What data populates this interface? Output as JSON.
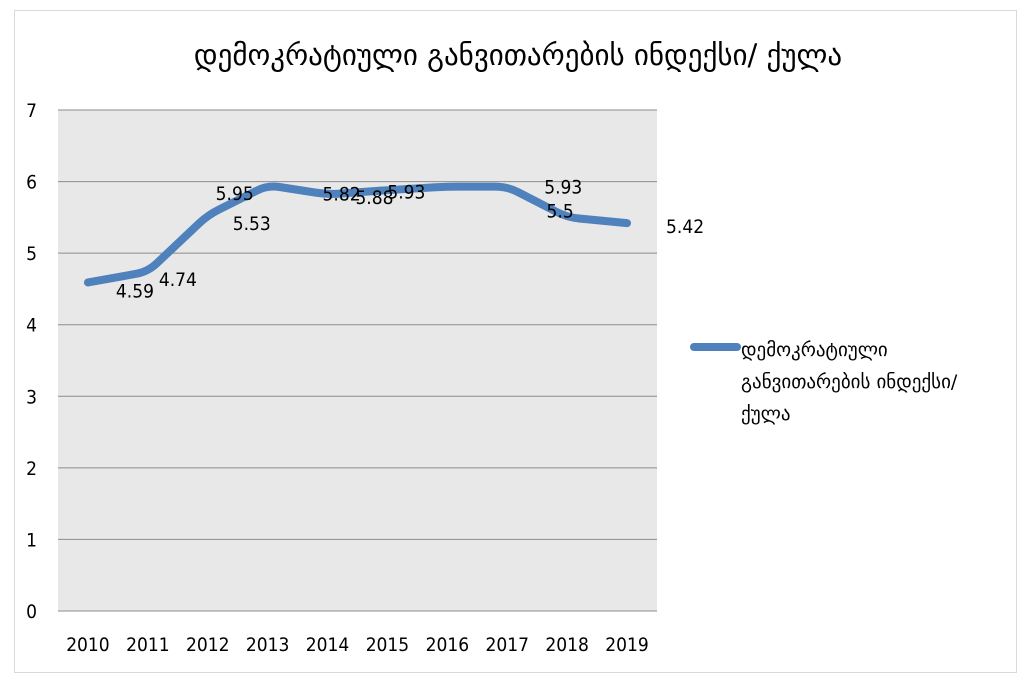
{
  "chart_data": {
    "type": "line",
    "title": "დემოკრატიული განვითარების ინდექსი/ ქულა",
    "categories": [
      "2010",
      "2011",
      "2012",
      "2013",
      "2014",
      "2015",
      "2016",
      "2017",
      "2018",
      "2019"
    ],
    "series": [
      {
        "name": "დემოკრატიული განვითარების ინდექსი/ ქულა",
        "values": [
          4.59,
          4.74,
          5.53,
          5.95,
          5.82,
          5.88,
          5.93,
          5.93,
          5.5,
          5.42
        ],
        "labels": [
          "4.59",
          "4.74",
          "5.53",
          "5.95",
          "5.82",
          "5.88",
          "5.93",
          "5.93",
          "5.5",
          "5.42"
        ],
        "color": "#4f81bd"
      }
    ],
    "ylim": [
      0,
      7
    ],
    "yticks": [
      "0",
      "1",
      "2",
      "3",
      "4",
      "5",
      "6",
      "7"
    ],
    "grid": true,
    "legend": "right",
    "plot_background": "#e8e8e8",
    "gridline_color": "#8c8c8c"
  }
}
